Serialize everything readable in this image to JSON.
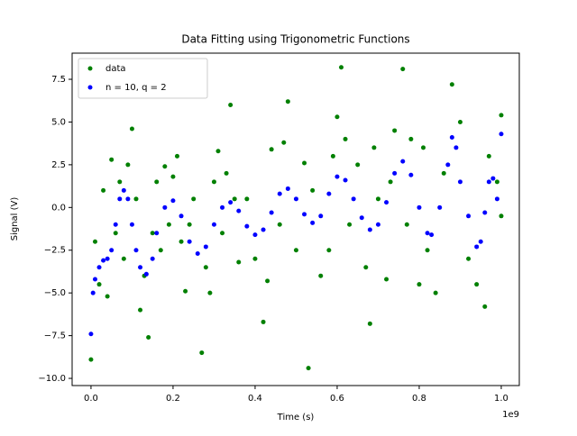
{
  "chart_data": {
    "type": "scatter",
    "title": "Data Fitting using Trigonometric Functions",
    "x_label": "Time (s)",
    "y_label": "Signal (V)",
    "x_offset_label": "1e9",
    "xlim": [
      -46000000,
      1044000000
    ],
    "xticks": [
      {
        "value": 0,
        "label": "0.0"
      },
      {
        "value": 200000000,
        "label": "0.2"
      },
      {
        "value": 400000000,
        "label": "0.4"
      },
      {
        "value": 600000000,
        "label": "0.6"
      },
      {
        "value": 800000000,
        "label": "0.8"
      },
      {
        "value": 1000000000,
        "label": "1.0"
      }
    ],
    "ylim": [
      -10.42,
      9.03
    ],
    "yticks": [
      {
        "value": -10,
        "label": "−10.0"
      },
      {
        "value": -7.5,
        "label": "−7.5"
      },
      {
        "value": -5,
        "label": "−5.0"
      },
      {
        "value": -2.5,
        "label": "−2.5"
      },
      {
        "value": 0,
        "label": "0.0"
      },
      {
        "value": 2.5,
        "label": "2.5"
      },
      {
        "value": 5,
        "label": "5.0"
      },
      {
        "value": 7.5,
        "label": "7.5"
      }
    ],
    "legend": "upper left",
    "series": [
      {
        "name": "data",
        "color": "#008000",
        "x": [
          0,
          10000000,
          20000000,
          30000000,
          40000000,
          50000000,
          60000000,
          70000000,
          80000000,
          90000000,
          100000000,
          110000000,
          120000000,
          130000000,
          140000000,
          150000000,
          160000000,
          170000000,
          180000000,
          190000000,
          200000000,
          210000000,
          220000000,
          230000000,
          240000000,
          250000000,
          270000000,
          280000000,
          290000000,
          300000000,
          310000000,
          320000000,
          330000000,
          340000000,
          350000000,
          360000000,
          380000000,
          400000000,
          420000000,
          430000000,
          440000000,
          460000000,
          470000000,
          480000000,
          500000000,
          520000000,
          530000000,
          540000000,
          560000000,
          580000000,
          590000000,
          600000000,
          610000000,
          620000000,
          630000000,
          650000000,
          670000000,
          680000000,
          690000000,
          700000000,
          720000000,
          730000000,
          740000000,
          760000000,
          770000000,
          780000000,
          800000000,
          810000000,
          820000000,
          840000000,
          860000000,
          880000000,
          900000000,
          920000000,
          940000000,
          960000000,
          970000000,
          990000000,
          1000000000,
          1000000000
        ],
        "values": [
          -8.9,
          -2,
          -4.5,
          1,
          -5.2,
          2.8,
          -1.5,
          1.5,
          -3,
          2.5,
          4.6,
          0.5,
          -6,
          -4,
          -7.6,
          -1.5,
          1.5,
          -2.5,
          2.4,
          -1,
          1.8,
          3,
          -2,
          -4.9,
          -1,
          0.5,
          -8.5,
          -3.5,
          -5,
          1.5,
          3.3,
          -1.5,
          2,
          6,
          0.5,
          -3.2,
          0.5,
          -3,
          -6.7,
          -4.3,
          3.4,
          -1,
          3.8,
          6.2,
          -2.5,
          2.6,
          -9.4,
          1,
          -4,
          -2.5,
          3,
          5.3,
          8.2,
          4,
          -1,
          2.5,
          -3.5,
          -6.8,
          3.5,
          0.5,
          -4.2,
          1.5,
          4.5,
          8.1,
          -1,
          4,
          -4.5,
          3.5,
          -2.5,
          -5,
          2,
          7.2,
          5,
          -3,
          -4.5,
          -5.8,
          3,
          1.5,
          5.4,
          -0.5
        ]
      },
      {
        "name": "n = 10, q = 2",
        "color": "#0000ff",
        "x": [
          0,
          5000000,
          10000000,
          20000000,
          30000000,
          40000000,
          50000000,
          60000000,
          70000000,
          80000000,
          90000000,
          100000000,
          110000000,
          120000000,
          135000000,
          150000000,
          160000000,
          180000000,
          200000000,
          220000000,
          240000000,
          260000000,
          280000000,
          300000000,
          320000000,
          340000000,
          360000000,
          380000000,
          400000000,
          420000000,
          440000000,
          460000000,
          480000000,
          500000000,
          520000000,
          540000000,
          560000000,
          580000000,
          600000000,
          620000000,
          640000000,
          660000000,
          680000000,
          700000000,
          720000000,
          740000000,
          760000000,
          780000000,
          800000000,
          820000000,
          830000000,
          850000000,
          870000000,
          880000000,
          890000000,
          900000000,
          920000000,
          940000000,
          950000000,
          960000000,
          970000000,
          980000000,
          990000000,
          1000000000
        ],
        "values": [
          -7.4,
          -5,
          -4.2,
          -3.5,
          -3.1,
          -3,
          -2.5,
          -1,
          0.5,
          1,
          0.5,
          -1,
          -2.5,
          -3.5,
          -3.9,
          -3,
          -1.5,
          0,
          0.4,
          -0.5,
          -2,
          -2.7,
          -2.3,
          -1,
          0,
          0.3,
          -0.2,
          -1.1,
          -1.6,
          -1.3,
          -0.3,
          0.8,
          1.1,
          0.5,
          -0.4,
          -0.9,
          -0.5,
          0.8,
          1.8,
          1.6,
          0.5,
          -0.6,
          -1.3,
          -1,
          0.3,
          2,
          2.7,
          1.9,
          0,
          -1.5,
          -1.6,
          0,
          2.5,
          4.1,
          3.5,
          1.5,
          -0.5,
          -2.3,
          -2,
          -0.3,
          1.5,
          1.7,
          0.5,
          4.3
        ]
      }
    ]
  }
}
